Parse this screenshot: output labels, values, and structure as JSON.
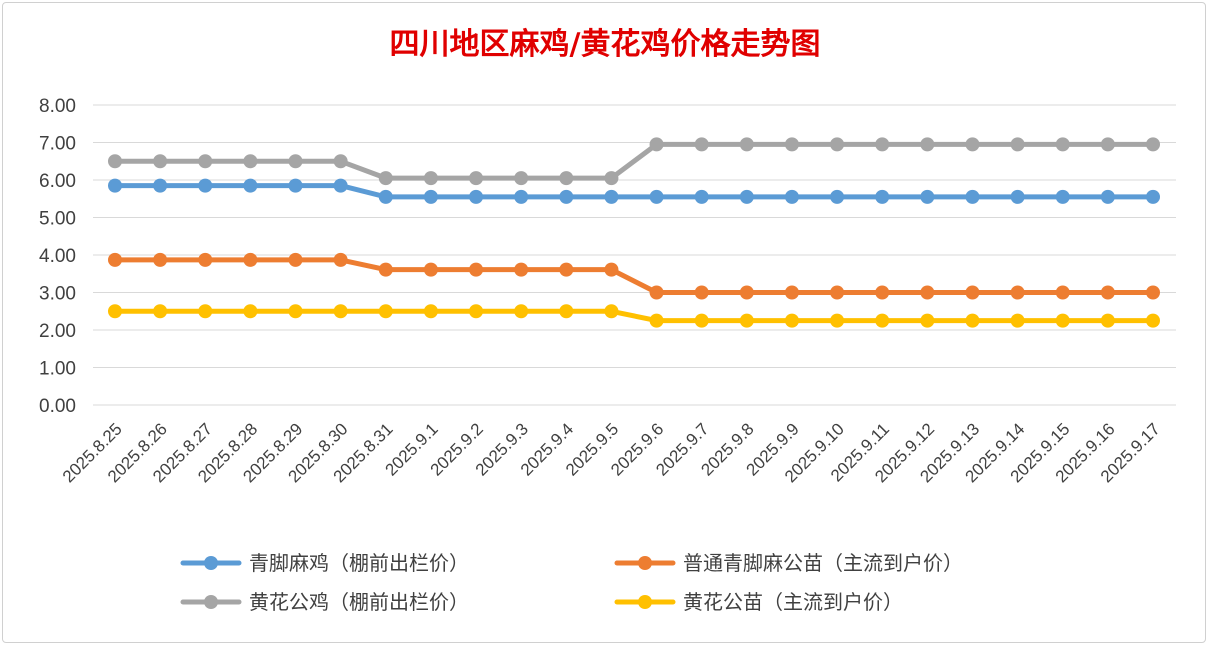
{
  "chart_data": {
    "type": "line",
    "title": "四川地区麻鸡/黄花鸡价格走势图",
    "xlabel": "",
    "ylabel": "",
    "ylim": [
      0,
      8
    ],
    "y_ticks": [
      "0.00",
      "1.00",
      "2.00",
      "3.00",
      "4.00",
      "5.00",
      "6.00",
      "7.00",
      "8.00"
    ],
    "grid": true,
    "legend_position": "bottom",
    "categories": [
      "2025.8.25",
      "2025.8.26",
      "2025.8.27",
      "2025.8.28",
      "2025.8.29",
      "2025.8.30",
      "2025.8.31",
      "2025.9.1",
      "2025.9.2",
      "2025.9.3",
      "2025.9.4",
      "2025.9.5",
      "2025.9.6",
      "2025.9.7",
      "2025.9.8",
      "2025.9.9",
      "2025.9.10",
      "2025.9.11",
      "2025.9.12",
      "2025.9.13",
      "2025.9.14",
      "2025.9.15",
      "2025.9.16",
      "2025.9.17"
    ],
    "series": [
      {
        "name": "青脚麻鸡（棚前出栏价）",
        "color": "#5b9bd5",
        "values": [
          5.85,
          5.85,
          5.85,
          5.85,
          5.85,
          5.85,
          5.55,
          5.55,
          5.55,
          5.55,
          5.55,
          5.55,
          5.55,
          5.55,
          5.55,
          5.55,
          5.55,
          5.55,
          5.55,
          5.55,
          5.55,
          5.55,
          5.55,
          5.55
        ]
      },
      {
        "name": "普通青脚麻公苗（主流到户价）",
        "color": "#ed7d31",
        "values": [
          3.87,
          3.87,
          3.87,
          3.87,
          3.87,
          3.87,
          3.61,
          3.61,
          3.61,
          3.61,
          3.61,
          3.61,
          3.0,
          3.0,
          3.0,
          3.0,
          3.0,
          3.0,
          3.0,
          3.0,
          3.0,
          3.0,
          3.0,
          3.0
        ]
      },
      {
        "name": "黄花公鸡（棚前出栏价）",
        "color": "#a5a5a5",
        "values": [
          6.5,
          6.5,
          6.5,
          6.5,
          6.5,
          6.5,
          6.05,
          6.05,
          6.05,
          6.05,
          6.05,
          6.05,
          6.95,
          6.95,
          6.95,
          6.95,
          6.95,
          6.95,
          6.95,
          6.95,
          6.95,
          6.95,
          6.95,
          6.95
        ]
      },
      {
        "name": "黄花公苗（主流到户价）",
        "color": "#ffc000",
        "values": [
          2.5,
          2.5,
          2.5,
          2.5,
          2.5,
          2.5,
          2.5,
          2.5,
          2.5,
          2.5,
          2.5,
          2.5,
          2.25,
          2.25,
          2.25,
          2.25,
          2.25,
          2.25,
          2.25,
          2.25,
          2.25,
          2.25,
          2.25,
          2.25
        ]
      }
    ]
  },
  "style": {
    "title_color": "#e00000",
    "grid_color": "#d9d9d9",
    "axis_text_color": "#404040"
  }
}
